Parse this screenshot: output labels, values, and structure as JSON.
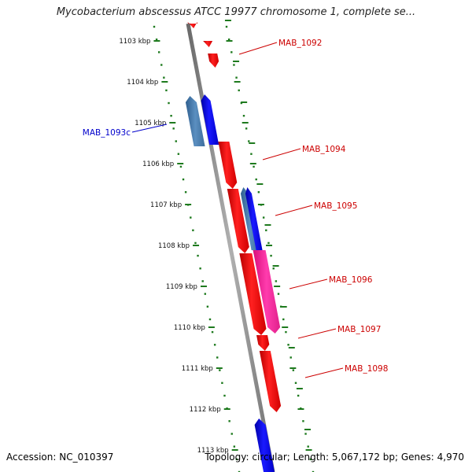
{
  "title": "Mycobacterium abscessus ATCC 19977 chromosome 1, complete se...",
  "footer": {
    "accession": "Accession: NC_010397",
    "summary": "Topology: circular; Length: 5,067,172 bp; Genes: 4,970"
  },
  "ticks": [
    "1103 kbp",
    "1104 kbp",
    "1105 kbp",
    "1106 kbp",
    "1107 kbp",
    "1108 kbp",
    "1109 kbp",
    "1110 kbp",
    "1111 kbp",
    "1112 kbp",
    "1113 kbp"
  ],
  "genes": [
    {
      "id": "MAB_1092",
      "label": "MAB_1092",
      "strand": "forward",
      "color": "#ff0000"
    },
    {
      "id": "MAB_1093c",
      "label": "MAB_1093c",
      "strand": "reverse",
      "color": "#0000ff"
    },
    {
      "id": "MAB_1094",
      "label": "MAB_1094",
      "strand": "forward",
      "color": "#ff0000"
    },
    {
      "id": "MAB_1095",
      "label": "MAB_1095",
      "strand": "forward",
      "color": "#ff0000"
    },
    {
      "id": "MAB_1096",
      "label": "MAB_1096",
      "strand": "forward",
      "color": "#ff2aa0"
    },
    {
      "id": "MAB_1097",
      "label": "MAB_1097",
      "strand": "forward",
      "color": "#ff0000"
    },
    {
      "id": "MAB_1098",
      "label": "MAB_1098",
      "strand": "forward",
      "color": "#ff0000"
    }
  ],
  "colors": {
    "forward": "#ff0000",
    "reverse": "#0000ff",
    "rna": "#ff2aa0",
    "backbone": "#808080",
    "ticks": "#1e7a1e",
    "label_forward": "#cc0000",
    "label_reverse": "#0000cc"
  }
}
